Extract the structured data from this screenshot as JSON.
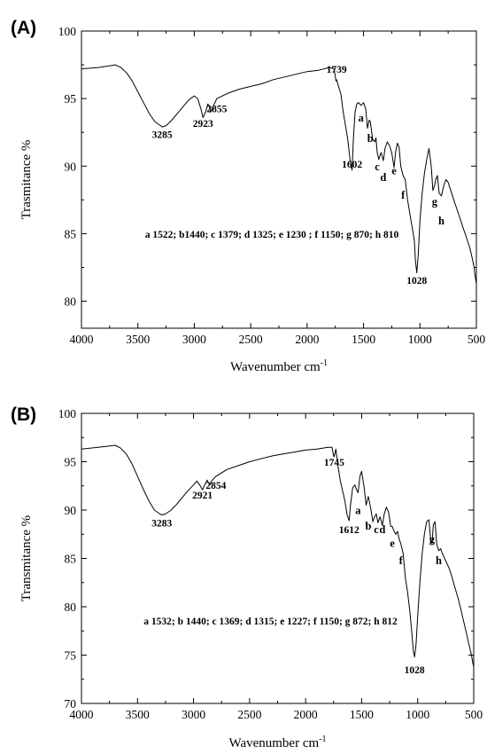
{
  "chart_data": [
    {
      "type": "line",
      "panel_label": "(A)",
      "xlabel": "Wavenumber cm",
      "xlabel_sup": "-1",
      "ylabel": "Trasmitance %",
      "xlim": [
        4000,
        500
      ],
      "ylim": [
        78,
        100
      ],
      "x_ticks": [
        4000,
        3500,
        3000,
        2500,
        2000,
        1500,
        1000,
        500
      ],
      "y_ticks": [
        80,
        85,
        90,
        95,
        100
      ],
      "annotation_text": "a 1522; b1440; c 1379; d 1325; e 1230 ; f 1150; g 870; h 810",
      "peak_labels": [
        {
          "text": "3285",
          "x": 3285,
          "y": 92.1
        },
        {
          "text": "2923",
          "x": 2923,
          "y": 92.9
        },
        {
          "text": "2855",
          "x": 2800,
          "y": 94.0
        },
        {
          "text": "1739",
          "x": 1739,
          "y": 96.9
        },
        {
          "text": "1602",
          "x": 1602,
          "y": 89.9
        },
        {
          "text": "1028",
          "x": 1028,
          "y": 81.3
        },
        {
          "text": "a",
          "x": 1522,
          "y": 93.3
        },
        {
          "text": "b",
          "x": 1440,
          "y": 91.8
        },
        {
          "text": "c",
          "x": 1379,
          "y": 89.7
        },
        {
          "text": "d",
          "x": 1325,
          "y": 88.9
        },
        {
          "text": "e",
          "x": 1230,
          "y": 89.4
        },
        {
          "text": "f",
          "x": 1150,
          "y": 87.6
        },
        {
          "text": "g",
          "x": 870,
          "y": 87.1
        },
        {
          "text": "h",
          "x": 810,
          "y": 85.7
        }
      ],
      "series": [
        {
          "x": [
            4000,
            3850,
            3700,
            3650,
            3600,
            3550,
            3500,
            3450,
            3400,
            3350,
            3300,
            3285,
            3250,
            3200,
            3150,
            3100,
            3050,
            3000,
            2970,
            2940,
            2923,
            2900,
            2880,
            2870,
            2855,
            2840,
            2800,
            2700,
            2600,
            2500,
            2400,
            2300,
            2200,
            2100,
            2000,
            1900,
            1800,
            1760,
            1745,
            1739,
            1725,
            1700,
            1680,
            1660,
            1640,
            1620,
            1602,
            1590,
            1575,
            1560,
            1545,
            1522,
            1500,
            1480,
            1465,
            1450,
            1440,
            1420,
            1400,
            1390,
            1379,
            1365,
            1345,
            1330,
            1325,
            1310,
            1290,
            1270,
            1250,
            1230,
            1215,
            1200,
            1185,
            1170,
            1150,
            1130,
            1110,
            1090,
            1070,
            1050,
            1040,
            1028,
            1015,
            1000,
            980,
            960,
            940,
            920,
            900,
            885,
            870,
            860,
            845,
            830,
            810,
            790,
            770,
            750,
            720,
            700,
            680,
            660,
            640,
            620,
            600,
            580,
            560,
            540,
            520,
            510,
            500
          ],
          "y": [
            97.2,
            97.3,
            97.5,
            97.3,
            96.9,
            96.3,
            95.5,
            94.7,
            93.9,
            93.3,
            93.0,
            92.9,
            93.0,
            93.4,
            93.9,
            94.4,
            94.9,
            95.2,
            95.0,
            94.2,
            93.6,
            94.0,
            94.6,
            94.5,
            94.0,
            94.3,
            95.0,
            95.4,
            95.7,
            95.9,
            96.1,
            96.4,
            96.6,
            96.8,
            97.0,
            97.1,
            97.3,
            97.2,
            96.3,
            96.4,
            96.0,
            95.3,
            94.0,
            93.0,
            92.0,
            90.5,
            89.7,
            92.0,
            94.0,
            94.6,
            94.7,
            94.5,
            94.7,
            94.2,
            92.8,
            93.4,
            93.3,
            92.0,
            91.8,
            92.1,
            91.0,
            90.5,
            91.0,
            90.6,
            90.4,
            91.3,
            91.8,
            91.5,
            91.0,
            89.9,
            91.1,
            91.7,
            91.4,
            90.0,
            89.3,
            89.0,
            87.5,
            86.5,
            85.5,
            84.5,
            83.0,
            82.1,
            83.5,
            86.0,
            88.0,
            89.5,
            90.5,
            91.3,
            90.0,
            88.2,
            88.6,
            89.0,
            89.3,
            88.0,
            87.8,
            88.5,
            89.0,
            88.8,
            88.0,
            87.5,
            87.0,
            86.5,
            86.0,
            85.5,
            85.0,
            84.5,
            84.0,
            83.3,
            82.5,
            81.8,
            81.3
          ]
        }
      ]
    },
    {
      "type": "line",
      "panel_label": "(B)",
      "xlabel": "Wavenumber cm",
      "xlabel_sup": "-1",
      "ylabel": "Transmitance %",
      "xlim": [
        4000,
        500
      ],
      "ylim": [
        70,
        100
      ],
      "x_ticks": [
        4000,
        3500,
        3000,
        2500,
        2000,
        1500,
        1000,
        500
      ],
      "y_ticks": [
        70,
        75,
        80,
        85,
        90,
        95,
        100
      ],
      "annotation_text": "a 1532; b 1440; c 1369; d 1315; e 1227; f 1150; g 872; h 812",
      "peak_labels": [
        {
          "text": "3283",
          "x": 3283,
          "y": 88.3
        },
        {
          "text": "2921",
          "x": 2921,
          "y": 91.2
        },
        {
          "text": "2854",
          "x": 2800,
          "y": 92.2
        },
        {
          "text": "1745",
          "x": 1745,
          "y": 94.6
        },
        {
          "text": "1612",
          "x": 1612,
          "y": 87.6
        },
        {
          "text": "1028",
          "x": 1028,
          "y": 73.1
        },
        {
          "text": "a",
          "x": 1532,
          "y": 89.6
        },
        {
          "text": "b",
          "x": 1440,
          "y": 88.0
        },
        {
          "text": "c",
          "x": 1369,
          "y": 87.6
        },
        {
          "text": "d",
          "x": 1315,
          "y": 87.6
        },
        {
          "text": "e",
          "x": 1227,
          "y": 86.2
        },
        {
          "text": "f",
          "x": 1150,
          "y": 84.4
        },
        {
          "text": "g",
          "x": 872,
          "y": 86.6
        },
        {
          "text": "h",
          "x": 812,
          "y": 84.4
        }
      ],
      "series": [
        {
          "x": [
            4000,
            3850,
            3700,
            3650,
            3600,
            3550,
            3500,
            3450,
            3400,
            3350,
            3300,
            3283,
            3250,
            3200,
            3150,
            3100,
            3050,
            3000,
            2970,
            2940,
            2921,
            2900,
            2880,
            2870,
            2854,
            2840,
            2800,
            2700,
            2600,
            2500,
            2400,
            2300,
            2200,
            2100,
            2000,
            1900,
            1800,
            1765,
            1750,
            1745,
            1730,
            1710,
            1690,
            1670,
            1650,
            1630,
            1612,
            1600,
            1580,
            1560,
            1545,
            1532,
            1515,
            1500,
            1480,
            1460,
            1450,
            1440,
            1420,
            1400,
            1385,
            1369,
            1355,
            1335,
            1315,
            1300,
            1280,
            1260,
            1240,
            1227,
            1210,
            1195,
            1180,
            1165,
            1150,
            1130,
            1110,
            1090,
            1070,
            1050,
            1040,
            1028,
            1015,
            1000,
            980,
            960,
            940,
            920,
            900,
            885,
            872,
            860,
            845,
            830,
            812,
            795,
            780,
            760,
            740,
            720,
            700,
            680,
            660,
            640,
            620,
            600,
            580,
            560,
            540,
            520,
            510,
            500
          ],
          "y": [
            96.3,
            96.5,
            96.7,
            96.4,
            95.8,
            94.8,
            93.5,
            92.2,
            91.0,
            90.0,
            89.6,
            89.5,
            89.6,
            90.0,
            90.6,
            91.3,
            92.0,
            92.6,
            93.0,
            92.5,
            92.1,
            92.6,
            93.1,
            92.9,
            92.6,
            93.0,
            93.5,
            94.2,
            94.6,
            95.0,
            95.3,
            95.6,
            95.8,
            96.0,
            96.2,
            96.3,
            96.5,
            96.5,
            95.6,
            95.5,
            96.3,
            94.5,
            93.0,
            92.0,
            91.0,
            89.5,
            88.9,
            90.5,
            92.3,
            92.6,
            92.1,
            91.8,
            93.5,
            94.0,
            92.5,
            90.5,
            91.0,
            91.4,
            90.2,
            88.8,
            89.3,
            89.6,
            88.7,
            89.3,
            88.4,
            89.5,
            90.3,
            89.8,
            88.3,
            88.3,
            87.8,
            87.5,
            87.8,
            87.0,
            86.5,
            85.5,
            83.0,
            81.5,
            79.5,
            77.0,
            75.5,
            74.8,
            76.0,
            79.0,
            82.5,
            85.5,
            87.5,
            88.8,
            89.0,
            87.0,
            86.5,
            88.5,
            88.8,
            86.5,
            85.8,
            86.0,
            85.5,
            85.0,
            84.5,
            84.0,
            83.3,
            82.5,
            81.7,
            80.9,
            80.0,
            79.0,
            78.0,
            77.0,
            76.0,
            75.0,
            74.3,
            73.8
          ]
        }
      ]
    }
  ]
}
